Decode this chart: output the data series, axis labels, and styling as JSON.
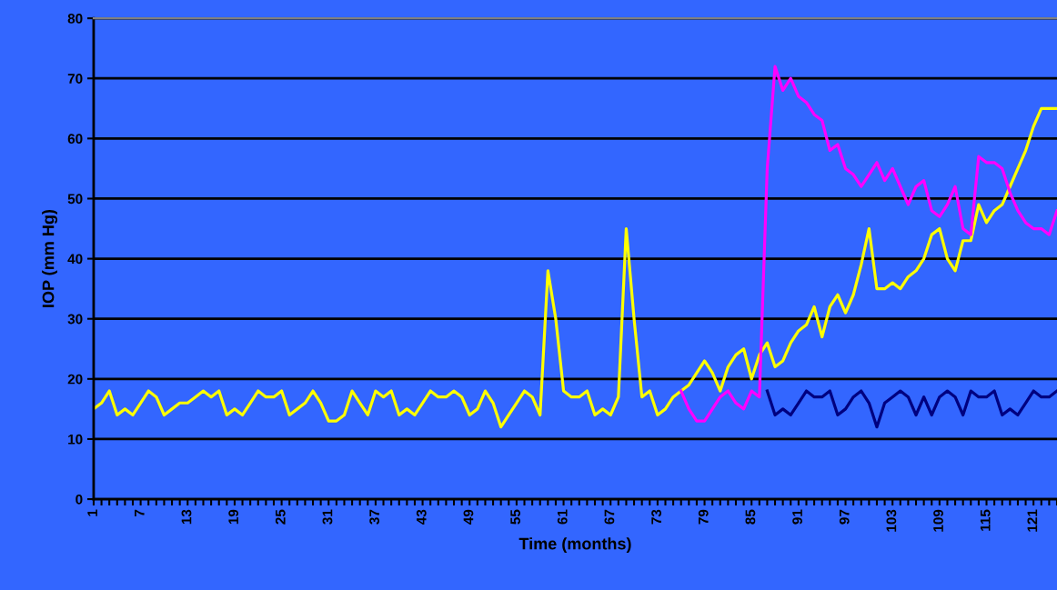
{
  "chart_data": {
    "type": "line",
    "xlabel": "Time (months)",
    "ylabel": "IOP (mm Hg)",
    "categories": [
      "1",
      null,
      null,
      null,
      null,
      null,
      "7",
      null,
      null,
      null,
      null,
      null,
      "13",
      null,
      null,
      null,
      null,
      null,
      "19",
      null,
      null,
      null,
      null,
      null,
      "25",
      null,
      null,
      null,
      null,
      null,
      "31",
      null,
      null,
      null,
      null,
      null,
      "37",
      null,
      null,
      null,
      null,
      null,
      "43",
      null,
      null,
      null,
      null,
      null,
      "49",
      null,
      null,
      null,
      null,
      null,
      "55",
      null,
      null,
      null,
      null,
      null,
      "61",
      null,
      null,
      null,
      null,
      null,
      "67",
      null,
      null,
      null,
      null,
      null,
      "73",
      null,
      null,
      null,
      null,
      null,
      "79",
      null,
      null,
      null,
      null,
      null,
      "85",
      null,
      null,
      null,
      null,
      null,
      "91",
      null,
      null,
      null,
      null,
      null,
      "97",
      null,
      null,
      null,
      null,
      null,
      "103",
      null,
      null,
      null,
      null,
      null,
      "109",
      null,
      null,
      null,
      null,
      null,
      "115",
      null,
      null,
      null,
      null,
      null,
      "121",
      null,
      null,
      null
    ],
    "series": [
      {
        "color": "#ffff00",
        "values": [
          15,
          16,
          18,
          14,
          15,
          14,
          16,
          18,
          17,
          14,
          15,
          16,
          16,
          17,
          18,
          17,
          18,
          14,
          15,
          14,
          16,
          18,
          17,
          17,
          18,
          14,
          15,
          16,
          18,
          16,
          13,
          13,
          14,
          18,
          16,
          14,
          18,
          17,
          18,
          14,
          15,
          14,
          16,
          18,
          17,
          17,
          18,
          17,
          14,
          15,
          18,
          16,
          12,
          14,
          16,
          18,
          17,
          14,
          38,
          30,
          18,
          17,
          17,
          18,
          14,
          15,
          14,
          17,
          45,
          30,
          17,
          18,
          14,
          15,
          17,
          18,
          19,
          21,
          23,
          21,
          18,
          22,
          24,
          25,
          20,
          24,
          26,
          22,
          23,
          26,
          28,
          29,
          32,
          27,
          32,
          34,
          31,
          34,
          39,
          45,
          35,
          35,
          36,
          35,
          37,
          38,
          40,
          44,
          45,
          40,
          38,
          43,
          43,
          49,
          46,
          48,
          49,
          52,
          55,
          58,
          62,
          65,
          65,
          65
        ]
      },
      {
        "color": "#ff00ff",
        "values": [
          null,
          null,
          null,
          null,
          null,
          null,
          null,
          null,
          null,
          null,
          null,
          null,
          null,
          null,
          null,
          null,
          null,
          null,
          null,
          null,
          null,
          null,
          null,
          null,
          null,
          null,
          null,
          null,
          null,
          null,
          null,
          null,
          null,
          null,
          null,
          null,
          null,
          null,
          null,
          null,
          null,
          null,
          null,
          null,
          null,
          null,
          null,
          null,
          null,
          null,
          null,
          null,
          null,
          null,
          null,
          null,
          null,
          null,
          null,
          null,
          null,
          null,
          null,
          null,
          null,
          null,
          null,
          null,
          null,
          null,
          null,
          null,
          null,
          null,
          null,
          18,
          15,
          13,
          13,
          15,
          17,
          18,
          16,
          15,
          18,
          17,
          55,
          72,
          68,
          70,
          67,
          66,
          64,
          63,
          58,
          59,
          55,
          54,
          52,
          54,
          56,
          53,
          55,
          52,
          49,
          52,
          53,
          48,
          47,
          49,
          52,
          45,
          44,
          57,
          56,
          56,
          55,
          51,
          48,
          46,
          45,
          45,
          44,
          48
        ]
      },
      {
        "color": "#000080",
        "values": [
          null,
          null,
          null,
          null,
          null,
          null,
          null,
          null,
          null,
          null,
          null,
          null,
          null,
          null,
          null,
          null,
          null,
          null,
          null,
          null,
          null,
          null,
          null,
          null,
          null,
          null,
          null,
          null,
          null,
          null,
          null,
          null,
          null,
          null,
          null,
          null,
          null,
          null,
          null,
          null,
          null,
          null,
          null,
          null,
          null,
          null,
          null,
          null,
          null,
          null,
          null,
          null,
          null,
          null,
          null,
          null,
          null,
          null,
          null,
          null,
          null,
          null,
          null,
          null,
          null,
          null,
          null,
          null,
          null,
          null,
          null,
          null,
          null,
          null,
          null,
          null,
          null,
          null,
          null,
          null,
          null,
          null,
          null,
          null,
          null,
          null,
          18,
          14,
          15,
          14,
          16,
          18,
          17,
          17,
          18,
          14,
          15,
          17,
          18,
          16,
          12,
          16,
          17,
          18,
          17,
          14,
          17,
          14,
          17,
          18,
          17,
          14,
          18,
          17,
          17,
          18,
          14,
          15,
          14,
          16,
          18,
          17,
          17,
          18
        ]
      }
    ],
    "ylim": [
      0,
      80
    ],
    "yticks": [
      0,
      10,
      20,
      30,
      40,
      50,
      60,
      70,
      80
    ],
    "grid": "y",
    "legend": false,
    "marker": "none",
    "line_style": "solid"
  }
}
